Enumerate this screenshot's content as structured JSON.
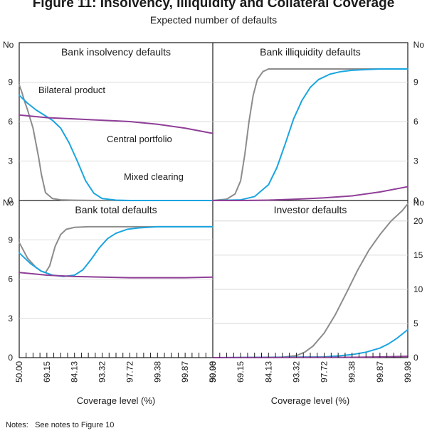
{
  "title": "Figure 11: Insolvency, Illiquidity and Collateral Coverage",
  "subtitle": "Expected number of defaults",
  "notes_label": "Notes:",
  "notes_text": "See notes to Figure 10",
  "colors": {
    "bilateral": "#8c8c8c",
    "mixed": "#1aa5e0",
    "central": "#8f3f97",
    "axis": "#1a1a1a",
    "grid": "#cfcfcf"
  },
  "chart_data": {
    "type": "line",
    "x": [
      50.0,
      69.15,
      84.13,
      93.32,
      97.72,
      99.38,
      99.87,
      99.98
    ],
    "xlabel": "Coverage level (%)",
    "x_tick_labels": [
      "50.00",
      "69.15",
      "84.13",
      "93.32",
      "97.72",
      "99.38",
      "99.87",
      "99.98"
    ],
    "panels": [
      {
        "id": "bank-insolvency",
        "title": "Bank insolvency defaults",
        "ylabel": "No",
        "y_side": "left",
        "ylim": [
          0,
          12
        ],
        "y_ticks": [
          0,
          3,
          6,
          9
        ],
        "annotations": [
          {
            "text": "Bilateral product",
            "series": "bilateral"
          },
          {
            "text": "Central portfolio",
            "series": "central"
          },
          {
            "text": "Mixed clearing",
            "series": "mixed"
          }
        ],
        "series": [
          {
            "name": "Bilateral product",
            "key": "bilateral",
            "x": [
              0,
              0.1,
              0.2,
              0.3,
              0.4,
              0.5,
              0.7,
              0.8,
              0.95,
              1.2,
              1.5,
              2,
              3,
              4,
              5,
              6,
              7
            ],
            "values": [
              8.8,
              8.2,
              7.5,
              6.9,
              6.2,
              5.5,
              3.3,
              2.0,
              0.6,
              0.15,
              0.05,
              0.02,
              0,
              0,
              0,
              0,
              0
            ]
          },
          {
            "name": "Mixed clearing",
            "key": "mixed",
            "x": [
              0,
              0.3,
              0.6,
              0.9,
              1.2,
              1.5,
              1.8,
              2.1,
              2.4,
              2.7,
              3.0,
              3.5,
              4,
              5,
              6,
              7
            ],
            "values": [
              8.0,
              7.4,
              6.9,
              6.5,
              6.1,
              5.5,
              4.4,
              3.0,
              1.5,
              0.55,
              0.15,
              0.03,
              0,
              0,
              0,
              0
            ]
          },
          {
            "name": "Central portfolio",
            "key": "central",
            "x": [
              0,
              1,
              2,
              3,
              4,
              5,
              6,
              7
            ],
            "values": [
              6.5,
              6.3,
              6.2,
              6.1,
              6.0,
              5.8,
              5.5,
              5.1
            ]
          }
        ]
      },
      {
        "id": "bank-illiquidity",
        "title": "Bank illiquidity defaults",
        "ylabel": "No",
        "y_side": "right",
        "ylim": [
          0,
          12
        ],
        "y_ticks": [
          0,
          3,
          6,
          9
        ],
        "annotations": [],
        "series": [
          {
            "name": "Bilateral product",
            "key": "bilateral",
            "x": [
              0,
              0.5,
              0.8,
              1.0,
              1.15,
              1.3,
              1.45,
              1.6,
              1.8,
              2.0,
              2.5,
              3,
              4,
              5,
              6,
              7
            ],
            "values": [
              0,
              0.1,
              0.5,
              1.5,
              3.5,
              6.0,
              8.0,
              9.2,
              9.8,
              10.0,
              10.0,
              10.0,
              10.0,
              10.0,
              10.0,
              10.0
            ]
          },
          {
            "name": "Mixed clearing",
            "key": "mixed",
            "x": [
              0,
              1,
              1.5,
              2,
              2.3,
              2.6,
              2.9,
              3.2,
              3.5,
              3.8,
              4.2,
              4.6,
              5,
              5.5,
              6,
              7
            ],
            "values": [
              0,
              0.05,
              0.3,
              1.2,
              2.5,
              4.3,
              6.2,
              7.6,
              8.6,
              9.2,
              9.6,
              9.8,
              9.9,
              9.95,
              10.0,
              10.0
            ]
          },
          {
            "name": "Central portfolio",
            "key": "central",
            "x": [
              0,
              1,
              2,
              3,
              4,
              5,
              6,
              7
            ],
            "values": [
              0,
              0,
              0.03,
              0.1,
              0.2,
              0.35,
              0.65,
              1.05
            ]
          }
        ]
      },
      {
        "id": "bank-total",
        "title": "Bank total defaults",
        "ylabel": "No",
        "y_side": "left",
        "ylim": [
          0,
          12
        ],
        "y_ticks": [
          0,
          3,
          6,
          9
        ],
        "annotations": [],
        "series": [
          {
            "name": "Bilateral product",
            "key": "bilateral",
            "x": [
              0,
              0.3,
              0.6,
              0.8,
              0.95,
              1.1,
              1.3,
              1.5,
              1.7,
              2.0,
              2.5,
              3,
              4,
              5,
              6,
              7
            ],
            "values": [
              8.8,
              7.6,
              6.9,
              6.6,
              6.5,
              7.0,
              8.5,
              9.4,
              9.8,
              9.95,
              10.0,
              10.0,
              10.0,
              10.0,
              10.0,
              10.0
            ]
          },
          {
            "name": "Mixed clearing",
            "key": "mixed",
            "x": [
              0,
              0.4,
              0.8,
              1.2,
              1.6,
              2.0,
              2.3,
              2.6,
              2.9,
              3.2,
              3.5,
              3.9,
              4.3,
              5,
              6,
              7
            ],
            "values": [
              8.0,
              7.2,
              6.6,
              6.3,
              6.2,
              6.3,
              6.7,
              7.5,
              8.4,
              9.1,
              9.5,
              9.8,
              9.9,
              10.0,
              10.0,
              10.0
            ]
          },
          {
            "name": "Central portfolio",
            "key": "central",
            "x": [
              0,
              1,
              2,
              3,
              4,
              5,
              6,
              7
            ],
            "values": [
              6.5,
              6.3,
              6.2,
              6.15,
              6.1,
              6.1,
              6.1,
              6.15
            ]
          }
        ]
      },
      {
        "id": "investor",
        "title": "Investor defaults",
        "ylabel": "No",
        "y_side": "right",
        "ylim": [
          0,
          23
        ],
        "y_ticks": [
          0,
          5,
          10,
          15,
          20
        ],
        "annotations": [],
        "series": [
          {
            "name": "Bilateral product",
            "key": "bilateral",
            "x": [
              0,
              2,
              2.5,
              3,
              3.3,
              3.6,
              4,
              4.4,
              4.8,
              5.2,
              5.6,
              6,
              6.4,
              6.8,
              7
            ],
            "values": [
              0,
              0,
              0.05,
              0.3,
              0.8,
              1.7,
              3.6,
              6.3,
              9.5,
              12.8,
              15.7,
              18.0,
              20.0,
              21.5,
              22.5
            ]
          },
          {
            "name": "Mixed clearing",
            "key": "mixed",
            "x": [
              0,
              4,
              4.5,
              5,
              5.5,
              6,
              6.3,
              6.6,
              7
            ],
            "values": [
              0,
              0.1,
              0.25,
              0.45,
              0.8,
              1.4,
              2.0,
              2.8,
              4.1
            ]
          },
          {
            "name": "Central portfolio",
            "key": "central",
            "x": [
              0,
              5,
              6,
              7
            ],
            "values": [
              0,
              0.05,
              0.1,
              0.2
            ]
          }
        ]
      }
    ]
  }
}
